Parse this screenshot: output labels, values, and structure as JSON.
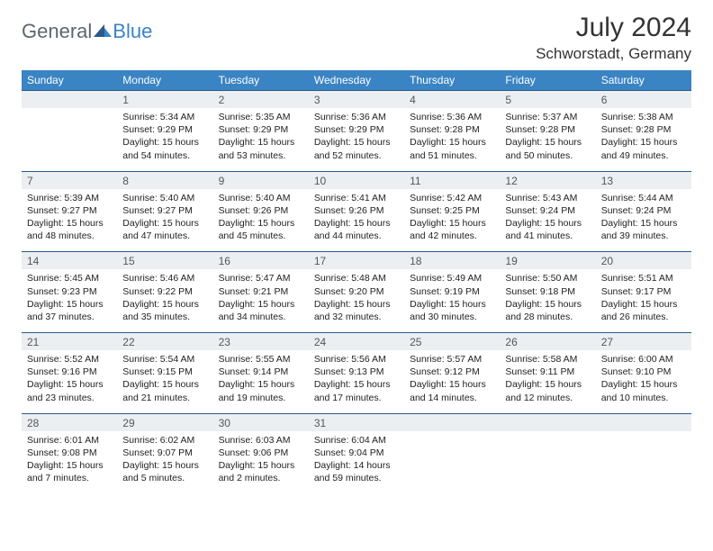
{
  "brand": {
    "part1": "General",
    "part2": "Blue"
  },
  "title": "July 2024",
  "location": "Schworstadt, Germany",
  "colors": {
    "header_bg": "#3a84c4",
    "header_text": "#ffffff",
    "daynum_bg": "#eceff1",
    "row_border": "#2a5a8a",
    "body_text": "#222222",
    "brand_gray": "#5a6770",
    "brand_blue": "#3a84c4",
    "page_bg": "#ffffff"
  },
  "weekdays": [
    "Sunday",
    "Monday",
    "Tuesday",
    "Wednesday",
    "Thursday",
    "Friday",
    "Saturday"
  ],
  "weeks": [
    {
      "nums": [
        "",
        "1",
        "2",
        "3",
        "4",
        "5",
        "6"
      ],
      "info": [
        "",
        "Sunrise: 5:34 AM\nSunset: 9:29 PM\nDaylight: 15 hours and 54 minutes.",
        "Sunrise: 5:35 AM\nSunset: 9:29 PM\nDaylight: 15 hours and 53 minutes.",
        "Sunrise: 5:36 AM\nSunset: 9:29 PM\nDaylight: 15 hours and 52 minutes.",
        "Sunrise: 5:36 AM\nSunset: 9:28 PM\nDaylight: 15 hours and 51 minutes.",
        "Sunrise: 5:37 AM\nSunset: 9:28 PM\nDaylight: 15 hours and 50 minutes.",
        "Sunrise: 5:38 AM\nSunset: 9:28 PM\nDaylight: 15 hours and 49 minutes."
      ]
    },
    {
      "nums": [
        "7",
        "8",
        "9",
        "10",
        "11",
        "12",
        "13"
      ],
      "info": [
        "Sunrise: 5:39 AM\nSunset: 9:27 PM\nDaylight: 15 hours and 48 minutes.",
        "Sunrise: 5:40 AM\nSunset: 9:27 PM\nDaylight: 15 hours and 47 minutes.",
        "Sunrise: 5:40 AM\nSunset: 9:26 PM\nDaylight: 15 hours and 45 minutes.",
        "Sunrise: 5:41 AM\nSunset: 9:26 PM\nDaylight: 15 hours and 44 minutes.",
        "Sunrise: 5:42 AM\nSunset: 9:25 PM\nDaylight: 15 hours and 42 minutes.",
        "Sunrise: 5:43 AM\nSunset: 9:24 PM\nDaylight: 15 hours and 41 minutes.",
        "Sunrise: 5:44 AM\nSunset: 9:24 PM\nDaylight: 15 hours and 39 minutes."
      ]
    },
    {
      "nums": [
        "14",
        "15",
        "16",
        "17",
        "18",
        "19",
        "20"
      ],
      "info": [
        "Sunrise: 5:45 AM\nSunset: 9:23 PM\nDaylight: 15 hours and 37 minutes.",
        "Sunrise: 5:46 AM\nSunset: 9:22 PM\nDaylight: 15 hours and 35 minutes.",
        "Sunrise: 5:47 AM\nSunset: 9:21 PM\nDaylight: 15 hours and 34 minutes.",
        "Sunrise: 5:48 AM\nSunset: 9:20 PM\nDaylight: 15 hours and 32 minutes.",
        "Sunrise: 5:49 AM\nSunset: 9:19 PM\nDaylight: 15 hours and 30 minutes.",
        "Sunrise: 5:50 AM\nSunset: 9:18 PM\nDaylight: 15 hours and 28 minutes.",
        "Sunrise: 5:51 AM\nSunset: 9:17 PM\nDaylight: 15 hours and 26 minutes."
      ]
    },
    {
      "nums": [
        "21",
        "22",
        "23",
        "24",
        "25",
        "26",
        "27"
      ],
      "info": [
        "Sunrise: 5:52 AM\nSunset: 9:16 PM\nDaylight: 15 hours and 23 minutes.",
        "Sunrise: 5:54 AM\nSunset: 9:15 PM\nDaylight: 15 hours and 21 minutes.",
        "Sunrise: 5:55 AM\nSunset: 9:14 PM\nDaylight: 15 hours and 19 minutes.",
        "Sunrise: 5:56 AM\nSunset: 9:13 PM\nDaylight: 15 hours and 17 minutes.",
        "Sunrise: 5:57 AM\nSunset: 9:12 PM\nDaylight: 15 hours and 14 minutes.",
        "Sunrise: 5:58 AM\nSunset: 9:11 PM\nDaylight: 15 hours and 12 minutes.",
        "Sunrise: 6:00 AM\nSunset: 9:10 PM\nDaylight: 15 hours and 10 minutes."
      ]
    },
    {
      "nums": [
        "28",
        "29",
        "30",
        "31",
        "",
        "",
        ""
      ],
      "info": [
        "Sunrise: 6:01 AM\nSunset: 9:08 PM\nDaylight: 15 hours and 7 minutes.",
        "Sunrise: 6:02 AM\nSunset: 9:07 PM\nDaylight: 15 hours and 5 minutes.",
        "Sunrise: 6:03 AM\nSunset: 9:06 PM\nDaylight: 15 hours and 2 minutes.",
        "Sunrise: 6:04 AM\nSunset: 9:04 PM\nDaylight: 14 hours and 59 minutes.",
        "",
        "",
        ""
      ]
    }
  ]
}
